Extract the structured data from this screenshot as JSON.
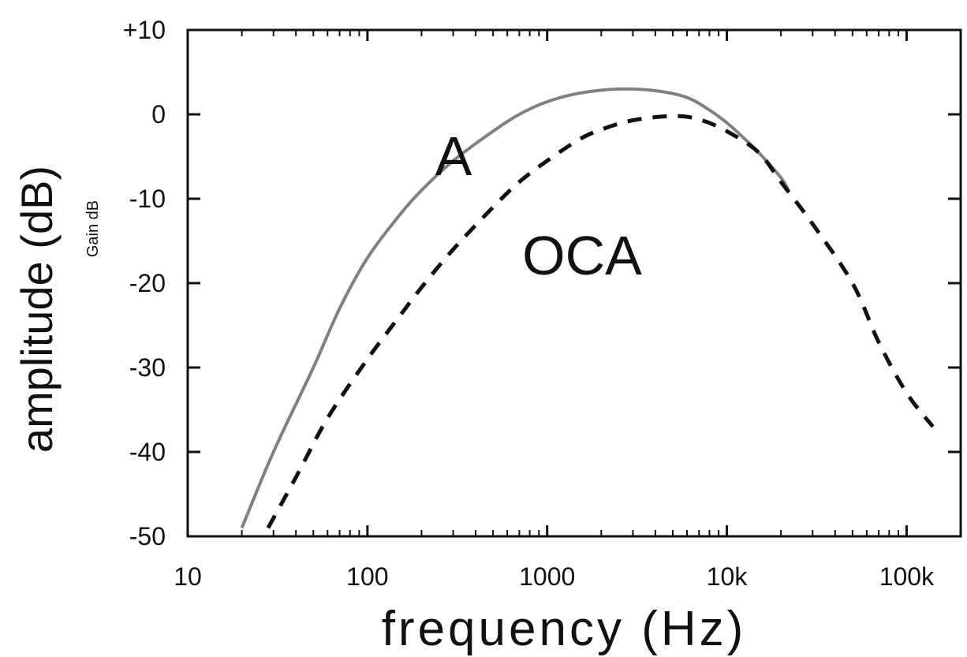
{
  "chart_data": {
    "type": "line",
    "xlabel": "frequency (Hz)",
    "ylabel": "amplitude (dB)",
    "ylabel_secondary": "Gain dB",
    "x_scale": "log",
    "xlim": [
      10,
      200000
    ],
    "ylim": [
      -50,
      10
    ],
    "x_ticks": [
      {
        "value": 10,
        "label": "10"
      },
      {
        "value": 100,
        "label": "100"
      },
      {
        "value": 1000,
        "label": "1000"
      },
      {
        "value": 10000,
        "label": "10k"
      },
      {
        "value": 100000,
        "label": "100k"
      }
    ],
    "y_ticks": [
      {
        "value": 10,
        "label": "+10"
      },
      {
        "value": 0,
        "label": "0"
      },
      {
        "value": -10,
        "label": "-10"
      },
      {
        "value": -20,
        "label": "-20"
      },
      {
        "value": -30,
        "label": "-30"
      },
      {
        "value": -40,
        "label": "-40"
      },
      {
        "value": -50,
        "label": "-50"
      }
    ],
    "grid": false,
    "series": [
      {
        "name": "A",
        "style": "solid",
        "color": "#808080",
        "x": [
          20,
          30,
          50,
          70,
          100,
          150,
          200,
          300,
          500,
          700,
          1000,
          1500,
          2500,
          4000,
          6000,
          8000,
          10000,
          12000,
          15000,
          20000,
          22000
        ],
        "y": [
          -49,
          -40,
          -30,
          -23,
          -17,
          -12,
          -9,
          -5.5,
          -2,
          0,
          1.5,
          2.5,
          3,
          2.8,
          2,
          0.5,
          -1,
          -2.5,
          -4.5,
          -7.5,
          -9
        ]
      },
      {
        "name": "OCA",
        "style": "dashed",
        "color": "#111111",
        "x": [
          28,
          40,
          60,
          100,
          150,
          200,
          300,
          500,
          700,
          1000,
          1500,
          2000,
          3000,
          5000,
          7000,
          10000,
          15000,
          20000,
          30000,
          50000,
          70000,
          100000,
          140000
        ],
        "y": [
          -49,
          -43,
          -36,
          -29,
          -24,
          -20.5,
          -16,
          -11,
          -8,
          -5.5,
          -3,
          -1.8,
          -0.7,
          -0.2,
          -0.6,
          -2,
          -4.5,
          -8,
          -13,
          -20,
          -27,
          -33,
          -37
        ]
      }
    ]
  }
}
